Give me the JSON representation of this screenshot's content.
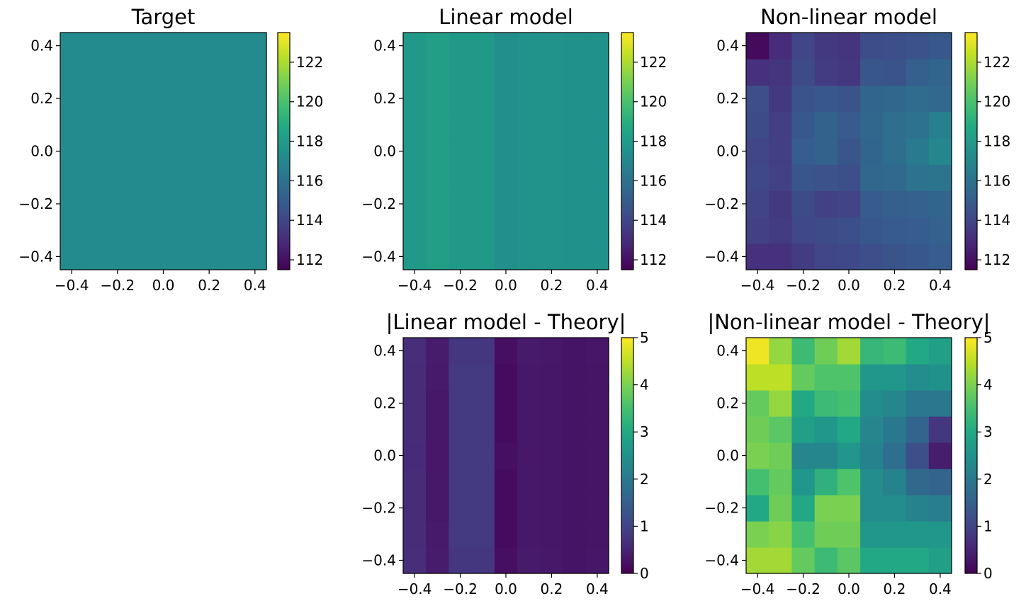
{
  "chart_data": [
    {
      "type": "heatmap",
      "title": "Target",
      "x": [
        -0.4,
        -0.3,
        -0.2,
        -0.1,
        0.0,
        0.1,
        0.2,
        0.3,
        0.4
      ],
      "y": [
        -0.4,
        -0.3,
        -0.2,
        -0.1,
        0.0,
        0.1,
        0.2,
        0.3,
        0.4
      ],
      "xticks": [
        "−0.4",
        "−0.2",
        "0.0",
        "0.2",
        "0.4"
      ],
      "yticks": [
        "−0.4",
        "−0.2",
        "0.0",
        "0.2",
        "0.4"
      ],
      "colorbar": {
        "ticks": [
          "112",
          "114",
          "116",
          "118",
          "120",
          "122"
        ],
        "range": [
          111.5,
          123.5
        ],
        "colormap": "viridis"
      },
      "z": [
        [
          117.2,
          117.2,
          117.2,
          117.2,
          117.2,
          117.2,
          117.2,
          117.2,
          117.2
        ],
        [
          117.2,
          117.2,
          117.2,
          117.2,
          117.2,
          117.2,
          117.2,
          117.2,
          117.2
        ],
        [
          117.2,
          117.2,
          117.2,
          117.2,
          117.2,
          117.2,
          117.2,
          117.2,
          117.2
        ],
        [
          117.2,
          117.2,
          117.2,
          117.2,
          117.2,
          117.2,
          117.2,
          117.2,
          117.2
        ],
        [
          117.2,
          117.2,
          117.2,
          117.2,
          117.2,
          117.2,
          117.2,
          117.2,
          117.2
        ],
        [
          117.2,
          117.2,
          117.2,
          117.2,
          117.2,
          117.2,
          117.2,
          117.2,
          117.2
        ],
        [
          117.2,
          117.2,
          117.2,
          117.2,
          117.2,
          117.2,
          117.2,
          117.2,
          117.2
        ],
        [
          117.2,
          117.2,
          117.2,
          117.2,
          117.2,
          117.2,
          117.2,
          117.2,
          117.2
        ],
        [
          117.2,
          117.2,
          117.2,
          117.2,
          117.2,
          117.2,
          117.2,
          117.2,
          117.2
        ]
      ]
    },
    {
      "type": "heatmap",
      "title": "Linear model",
      "x": [
        -0.4,
        -0.3,
        -0.2,
        -0.1,
        0.0,
        0.1,
        0.2,
        0.3,
        0.4
      ],
      "y": [
        -0.4,
        -0.3,
        -0.2,
        -0.1,
        0.0,
        0.1,
        0.2,
        0.3,
        0.4
      ],
      "xticks": [
        "−0.4",
        "−0.2",
        "0.0",
        "0.2",
        "0.4"
      ],
      "yticks": [
        "−0.4",
        "−0.2",
        "0.0",
        "0.2",
        "0.4"
      ],
      "colorbar": {
        "ticks": [
          "112",
          "114",
          "116",
          "118",
          "120",
          "122"
        ],
        "range": [
          111.5,
          123.5
        ],
        "colormap": "viridis"
      },
      "z": [
        [
          117.9,
          118.2,
          117.9,
          117.9,
          117.4,
          117.6,
          117.6,
          117.5,
          117.5
        ],
        [
          117.9,
          118.2,
          117.9,
          117.9,
          117.4,
          117.6,
          117.6,
          117.5,
          117.5
        ],
        [
          117.9,
          118.2,
          117.9,
          117.9,
          117.4,
          117.6,
          117.6,
          117.5,
          117.5
        ],
        [
          117.9,
          118.2,
          117.9,
          117.9,
          117.4,
          117.6,
          117.6,
          117.5,
          117.5
        ],
        [
          117.9,
          118.2,
          117.9,
          117.9,
          117.4,
          117.6,
          117.6,
          117.5,
          117.5
        ],
        [
          117.9,
          118.2,
          117.9,
          117.9,
          117.4,
          117.6,
          117.6,
          117.5,
          117.5
        ],
        [
          117.9,
          118.2,
          117.9,
          117.9,
          117.4,
          117.6,
          117.6,
          117.5,
          117.5
        ],
        [
          117.9,
          118.2,
          117.9,
          117.9,
          117.4,
          117.6,
          117.6,
          117.5,
          117.5
        ],
        [
          117.9,
          118.2,
          117.9,
          117.9,
          117.4,
          117.6,
          117.6,
          117.5,
          117.5
        ]
      ]
    },
    {
      "type": "heatmap",
      "title": "Non-linear model",
      "x": [
        -0.4,
        -0.3,
        -0.2,
        -0.1,
        0.0,
        0.1,
        0.2,
        0.3,
        0.4
      ],
      "y": [
        -0.4,
        -0.3,
        -0.2,
        -0.1,
        0.0,
        0.1,
        0.2,
        0.3,
        0.4
      ],
      "xticks": [
        "−0.4",
        "−0.2",
        "0.0",
        "0.2",
        "0.4"
      ],
      "yticks": [
        "−0.4",
        "−0.2",
        "0.0",
        "0.2",
        "0.4"
      ],
      "colorbar": {
        "ticks": [
          "112",
          "114",
          "116",
          "118",
          "120",
          "122"
        ],
        "range": [
          111.5,
          123.5
        ],
        "colormap": "viridis"
      },
      "z": [
        [
          113.2,
          113.2,
          113.6,
          114.0,
          114.1,
          114.4,
          114.6,
          114.8,
          115.0
        ],
        [
          113.8,
          113.6,
          114.1,
          114.2,
          114.4,
          114.8,
          114.9,
          115.0,
          115.2
        ],
        [
          113.9,
          113.5,
          114.2,
          113.8,
          113.9,
          114.9,
          115.1,
          115.2,
          115.4
        ],
        [
          114.1,
          113.8,
          114.7,
          114.5,
          114.4,
          115.5,
          115.6,
          116.0,
          116.1
        ],
        [
          114.0,
          113.7,
          115.0,
          115.3,
          114.7,
          115.4,
          115.8,
          116.4,
          117.0
        ],
        [
          114.2,
          113.7,
          114.8,
          115.3,
          114.9,
          115.5,
          115.8,
          116.0,
          116.7
        ],
        [
          114.4,
          113.5,
          114.5,
          114.8,
          114.6,
          115.4,
          115.5,
          115.7,
          115.6
        ],
        [
          113.2,
          113.3,
          114.2,
          113.6,
          113.4,
          114.7,
          114.6,
          115.1,
          115.4
        ],
        [
          111.8,
          113.0,
          114.0,
          113.5,
          113.3,
          114.3,
          114.4,
          114.5,
          114.8
        ]
      ]
    },
    {
      "type": "heatmap",
      "title": "|Linear model - Theory|",
      "x": [
        -0.4,
        -0.3,
        -0.2,
        -0.1,
        0.0,
        0.1,
        0.2,
        0.3,
        0.4
      ],
      "y": [
        -0.4,
        -0.3,
        -0.2,
        -0.1,
        0.0,
        0.1,
        0.2,
        0.3,
        0.4
      ],
      "xticks": [
        "−0.4",
        "−0.2",
        "0.0",
        "0.2",
        "0.4"
      ],
      "yticks": [
        "−0.4",
        "−0.2",
        "0.0",
        "0.2",
        "0.4"
      ],
      "colorbar": {
        "ticks": [
          "0",
          "1",
          "2",
          "3",
          "4",
          "5"
        ],
        "range": [
          0,
          5
        ],
        "colormap": "viridis"
      },
      "z": [
        [
          0.65,
          0.38,
          0.8,
          0.78,
          0.2,
          0.35,
          0.32,
          0.27,
          0.3
        ],
        [
          0.62,
          0.35,
          0.85,
          0.85,
          0.15,
          0.32,
          0.3,
          0.27,
          0.28
        ],
        [
          0.62,
          0.32,
          0.85,
          0.85,
          0.15,
          0.32,
          0.3,
          0.27,
          0.28
        ],
        [
          0.62,
          0.32,
          0.85,
          0.85,
          0.15,
          0.32,
          0.3,
          0.27,
          0.28
        ],
        [
          0.6,
          0.32,
          0.85,
          0.85,
          0.2,
          0.32,
          0.3,
          0.27,
          0.28
        ],
        [
          0.62,
          0.32,
          0.85,
          0.85,
          0.15,
          0.32,
          0.3,
          0.27,
          0.28
        ],
        [
          0.62,
          0.32,
          0.85,
          0.85,
          0.15,
          0.32,
          0.3,
          0.27,
          0.28
        ],
        [
          0.62,
          0.35,
          0.85,
          0.85,
          0.15,
          0.32,
          0.3,
          0.27,
          0.28
        ],
        [
          0.65,
          0.38,
          0.8,
          0.78,
          0.2,
          0.35,
          0.32,
          0.27,
          0.3
        ]
      ]
    },
    {
      "type": "heatmap",
      "title": "|Non-linear model - Theory|",
      "x": [
        -0.4,
        -0.3,
        -0.2,
        -0.1,
        0.0,
        0.1,
        0.2,
        0.3,
        0.4
      ],
      "y": [
        -0.4,
        -0.3,
        -0.2,
        -0.1,
        0.0,
        0.1,
        0.2,
        0.3,
        0.4
      ],
      "xticks": [
        "−0.4",
        "−0.2",
        "0.0",
        "0.2",
        "0.4"
      ],
      "yticks": [
        "−0.4",
        "−0.2",
        "0.0",
        "0.2",
        "0.4"
      ],
      "colorbar": {
        "ticks": [
          "0",
          "1",
          "2",
          "3",
          "4",
          "5"
        ],
        "range": [
          0,
          5
        ],
        "colormap": "viridis"
      },
      "z": [
        [
          4.3,
          4.3,
          3.8,
          3.4,
          3.7,
          3.0,
          3.0,
          3.0,
          2.8
        ],
        [
          4.0,
          4.1,
          3.5,
          3.9,
          3.9,
          2.6,
          2.6,
          2.6,
          2.6
        ],
        [
          3.0,
          3.9,
          3.0,
          4.0,
          4.0,
          2.4,
          2.4,
          2.2,
          2.1
        ],
        [
          3.5,
          3.8,
          2.6,
          3.2,
          3.6,
          2.4,
          2.2,
          1.7,
          1.6
        ],
        [
          4.0,
          3.9,
          2.3,
          2.3,
          2.6,
          2.2,
          1.8,
          1.2,
          0.4
        ],
        [
          3.9,
          3.7,
          2.8,
          2.6,
          3.0,
          2.3,
          2.0,
          1.6,
          0.8
        ],
        [
          3.8,
          4.2,
          3.0,
          3.4,
          3.5,
          2.4,
          2.3,
          2.0,
          2.0
        ],
        [
          4.5,
          4.5,
          3.8,
          3.6,
          3.6,
          2.6,
          2.6,
          2.4,
          2.5
        ],
        [
          4.9,
          4.2,
          3.4,
          3.9,
          4.3,
          3.3,
          3.4,
          3.0,
          2.8
        ]
      ]
    }
  ]
}
